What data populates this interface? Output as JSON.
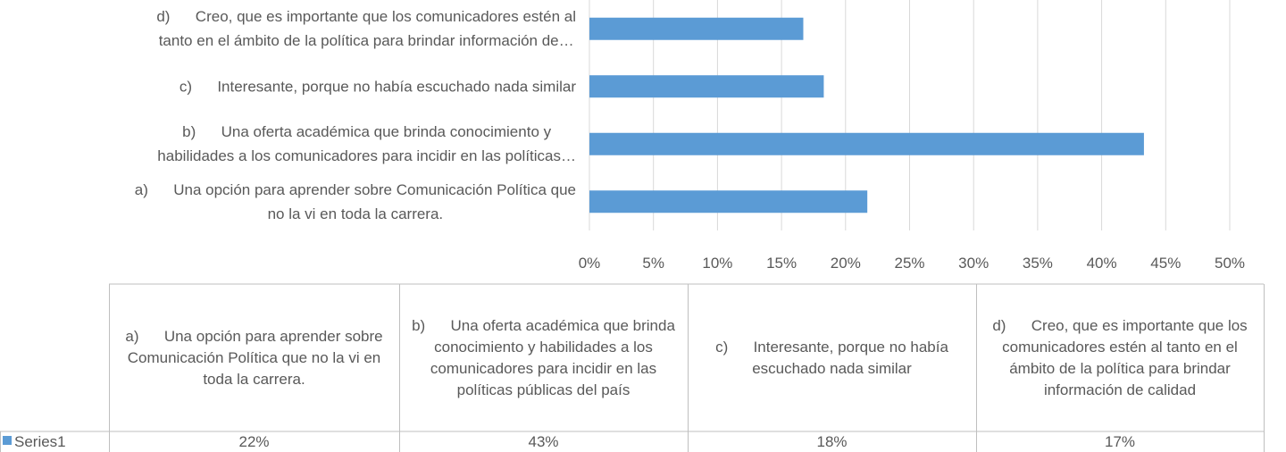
{
  "chart_data": {
    "type": "bar",
    "orientation": "horizontal",
    "categories": [
      [
        "a)      Una opción para aprender sobre Comunicación Política que",
        "no la vi en toda la carrera."
      ],
      [
        "b)      Una oferta académica que brinda conocimiento y",
        "habilidades a los comunicadores para incidir en las políticas…"
      ],
      [
        "c)      Interesante, porque no había escuchado nada similar"
      ],
      [
        "d)      Creo, que es importante que los comunicadores estén al",
        "tanto en el ámbito de la política para brindar información de…"
      ]
    ],
    "series": [
      {
        "name": "Series1",
        "color": "#5b9bd5",
        "values": [
          21.7,
          43.3,
          18.3,
          16.7
        ],
        "value_labels": [
          "22%",
          "43%",
          "18%",
          "17%"
        ]
      }
    ],
    "xlim": [
      0,
      50
    ],
    "xticks": [
      {
        "value": 0,
        "label": "0%"
      },
      {
        "value": 5,
        "label": "5%"
      },
      {
        "value": 10,
        "label": "10%"
      },
      {
        "value": 15,
        "label": "15%"
      },
      {
        "value": 20,
        "label": "20%"
      },
      {
        "value": 25,
        "label": "25%"
      },
      {
        "value": 30,
        "label": "30%"
      },
      {
        "value": 35,
        "label": "35%"
      },
      {
        "value": 40,
        "label": "40%"
      },
      {
        "value": 45,
        "label": "45%"
      },
      {
        "value": 50,
        "label": "50%"
      }
    ],
    "grid": true,
    "data_table": {
      "headers": [
        "a)      Una opción para aprender sobre Comunicación Política que no la vi en toda la carrera.",
        "b)      Una oferta académica que brinda conocimiento y habilidades a los comunicadores para incidir en las políticas públicas del país",
        "c)      Interesante, porque no había escuchado nada similar",
        "d)      Creo, que es importante que los comunicadores estén al tanto en el ámbito de la política para brindar información de calidad"
      ]
    }
  }
}
